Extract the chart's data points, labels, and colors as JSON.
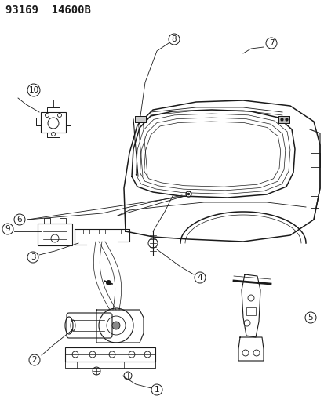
{
  "title": "93169  14600B",
  "bg_color": "#ffffff",
  "line_color": "#1a1a1a",
  "fig_width": 4.14,
  "fig_height": 5.33,
  "dpi": 100,
  "header_fontsize": 10,
  "label_fontsize": 7.5
}
